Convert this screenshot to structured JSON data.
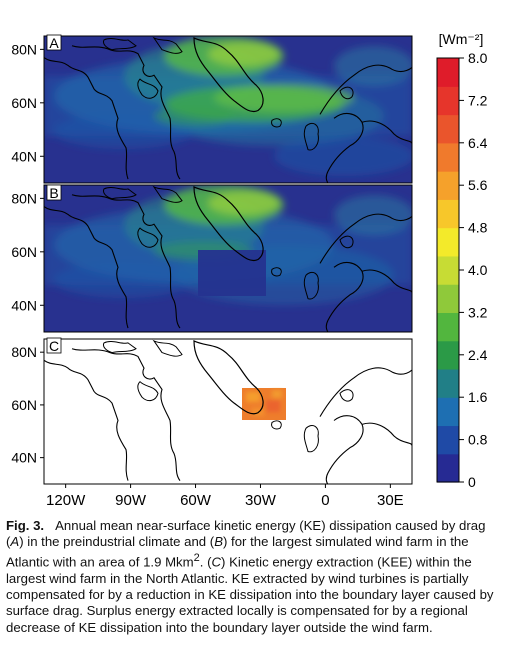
{
  "chart_data": {
    "type": "heatmap",
    "panels": [
      {
        "label": "A",
        "description_value_range": [
          0,
          6.5
        ]
      },
      {
        "label": "B",
        "description_value_range": [
          0,
          6.5
        ]
      },
      {
        "label": "C",
        "description_value_range": [
          0,
          8.0
        ]
      }
    ],
    "ylabel_ticks": [
      "80N",
      "60N",
      "40N"
    ],
    "xlabel_ticks": [
      "120W",
      "90W",
      "60W",
      "30W",
      "0",
      "30E"
    ],
    "x_range_deg": [
      -130,
      40
    ],
    "y_range_deg": [
      30,
      85
    ],
    "colorbar": {
      "unit": "[Wm⁻²]",
      "ticks": [
        "8.0",
        "7.2",
        "6.4",
        "5.6",
        "4.8",
        "4.0",
        "3.2",
        "2.4",
        "1.6",
        "0.8",
        "0"
      ],
      "min": 0,
      "max": 8.0,
      "colors": [
        "#262a93",
        "#1f4aa6",
        "#1e6fb2",
        "#217f87",
        "#2b9a47",
        "#52b63e",
        "#8fc93a",
        "#c7dc34",
        "#f3ea2a",
        "#f7c72a",
        "#f5a12b",
        "#f07a2c",
        "#ea552c",
        "#e6352b",
        "#df1c2a"
      ]
    },
    "wind_farm_region": {
      "lon": [
        -38,
        -16
      ],
      "lat": [
        48,
        63
      ],
      "panel_C_value_range": [
        5.0,
        6.5
      ]
    }
  },
  "caption": {
    "fig_label": "Fig. 3.",
    "text_1": "Annual mean near-surface kinetic energy (KE) dissipation caused by drag (",
    "A_ref": "A",
    "text_2": ") in the preindustrial climate and (",
    "B_ref": "B",
    "text_3": ") for the largest simulated wind farm in the Atlantic with an area of 1.9 Mkm",
    "sup": "2",
    "text_4": ". (",
    "C_ref": "C",
    "text_5": ") Kinetic energy extraction (KEE) within the largest wind farm in the North Atlantic. KE extracted by wind turbines is partially compensated for by a reduction in KE dissipation into the boundary layer caused by surface drag. Surplus energy extracted locally is compensated for by a regional decrease of KE dissipation into the boundary layer outside the wind farm."
  }
}
